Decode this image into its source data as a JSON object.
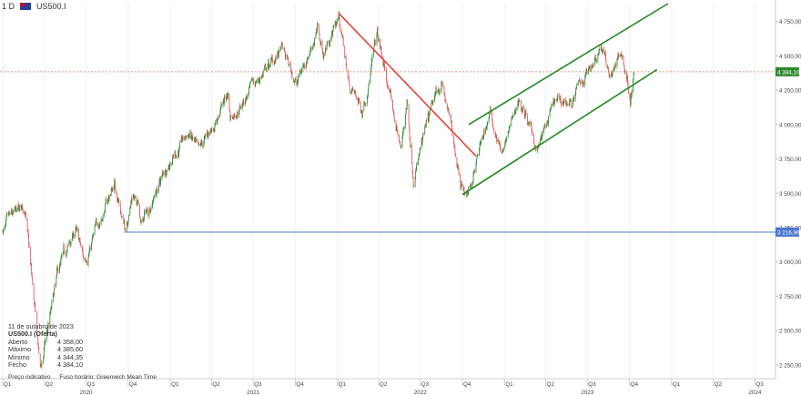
{
  "header": {
    "timeframe": "1 D",
    "symbol": "US500.I"
  },
  "info_panel": {
    "date": "11 de outubro de 2023",
    "instrument": "US500.I (Oferta)",
    "rows": [
      {
        "label": "Aberto",
        "value": "4 358,00"
      },
      {
        "label": "Máximo",
        "value": "4 385,60"
      },
      {
        "label": "Mínimo",
        "value": "4 344,35"
      },
      {
        "label": "Fecho",
        "value": "4 384,10"
      }
    ]
  },
  "footer_note": {
    "price_note": "Preço indicativo",
    "timezone_note": "Fuso horário: Greenwich Mean Time"
  },
  "colors": {
    "up": "#2e8b2e",
    "down": "#e05a5a",
    "channel": "#228b22",
    "downtrend": "#e0443a",
    "support": "#4a78d0",
    "current": "#e07a5f"
  },
  "chart_data": {
    "type": "candlestick",
    "ylim": [
      2150,
      4880
    ],
    "y_ticks": [
      "4 750,00",
      "4 500,00",
      "4 250,00",
      "4 000,00",
      "3 750,00",
      "3 500,00",
      "3 250,00",
      "3 000,00",
      "2 750,00",
      "2 500,00",
      "2 250,00"
    ],
    "y_tick_values": [
      4750,
      4500,
      4250,
      4000,
      3750,
      3500,
      3250,
      3000,
      2750,
      2500,
      2250
    ],
    "quarter_labels": [
      "Q1",
      "Q2",
      "Q3",
      "Q4",
      "Q1",
      "Q2",
      "Q3",
      "Q4",
      "Q1",
      "Q2",
      "Q3",
      "Q4",
      "Q1",
      "Q2",
      "Q3",
      "Q4",
      "Q1",
      "Q2",
      "Q3"
    ],
    "quarter_dates": [
      "2020-01-01",
      "2020-04-01",
      "2020-07-01",
      "2020-10-01",
      "2021-01-01",
      "2021-04-01",
      "2021-07-01",
      "2021-10-01",
      "2022-01-01",
      "2022-04-01",
      "2022-07-01",
      "2022-10-01",
      "2023-01-01",
      "2023-04-01",
      "2023-07-01",
      "2023-10-01",
      "2024-01-01",
      "2024-04-01",
      "2024-07-01"
    ],
    "year_labels": [
      "2020",
      "2021",
      "2022",
      "2023",
      "2024"
    ],
    "year_dates": [
      "2020-07-01",
      "2021-07-01",
      "2022-07-01",
      "2023-07-01",
      "2024-07-01"
    ],
    "x_range": [
      "2020-01-01",
      "2024-08-15"
    ],
    "price_path": [
      [
        "2020-01-01",
        3230
      ],
      [
        "2020-02-19",
        3390
      ],
      [
        "2020-03-23",
        2200
      ],
      [
        "2020-04-30",
        2900
      ],
      [
        "2020-06-08",
        3230
      ],
      [
        "2020-06-26",
        3000
      ],
      [
        "2020-09-02",
        3580
      ],
      [
        "2020-09-23",
        3240
      ],
      [
        "2020-10-12",
        3530
      ],
      [
        "2020-10-30",
        3270
      ],
      [
        "2020-12-31",
        3750
      ],
      [
        "2021-02-12",
        3930
      ],
      [
        "2021-03-04",
        3770
      ],
      [
        "2021-05-07",
        4230
      ],
      [
        "2021-05-12",
        4060
      ],
      [
        "2021-07-30",
        4400
      ],
      [
        "2021-09-02",
        4540
      ],
      [
        "2021-10-04",
        4300
      ],
      [
        "2021-11-18",
        4700
      ],
      [
        "2021-12-01",
        4510
      ],
      [
        "2022-01-04",
        4800
      ],
      [
        "2022-01-27",
        4280
      ],
      [
        "2022-02-24",
        4110
      ],
      [
        "2022-03-29",
        4640
      ],
      [
        "2022-05-20",
        3810
      ],
      [
        "2022-06-02",
        4170
      ],
      [
        "2022-06-16",
        3640
      ],
      [
        "2022-08-16",
        4320
      ],
      [
        "2022-09-30",
        3580
      ],
      [
        "2022-10-12",
        3490
      ],
      [
        "2022-11-30",
        4080
      ],
      [
        "2022-12-28",
        3780
      ],
      [
        "2023-02-02",
        4190
      ],
      [
        "2023-03-13",
        3810
      ],
      [
        "2023-04-20",
        4130
      ],
      [
        "2023-05-31",
        4180
      ],
      [
        "2023-07-31",
        4600
      ],
      [
        "2023-08-18",
        4360
      ],
      [
        "2023-09-14",
        4510
      ],
      [
        "2023-10-03",
        4210
      ],
      [
        "2023-10-11",
        4384
      ]
    ],
    "annotations": {
      "downtrend_line": [
        [
          "2022-01-04",
          4810
        ],
        [
          "2022-10-31",
          3770
        ]
      ],
      "channel_upper": [
        [
          "2022-10-15",
          4000
        ],
        [
          "2023-12-24",
          4880
        ]
      ],
      "channel_lower": [
        [
          "2022-10-01",
          3490
        ],
        [
          "2023-11-30",
          4400
        ]
      ],
      "support_line": {
        "from": "2020-09-23",
        "value": 3216.96,
        "label": "3 216,96"
      },
      "current_price": {
        "value": 4384.1,
        "label": "4 384,10"
      }
    }
  }
}
